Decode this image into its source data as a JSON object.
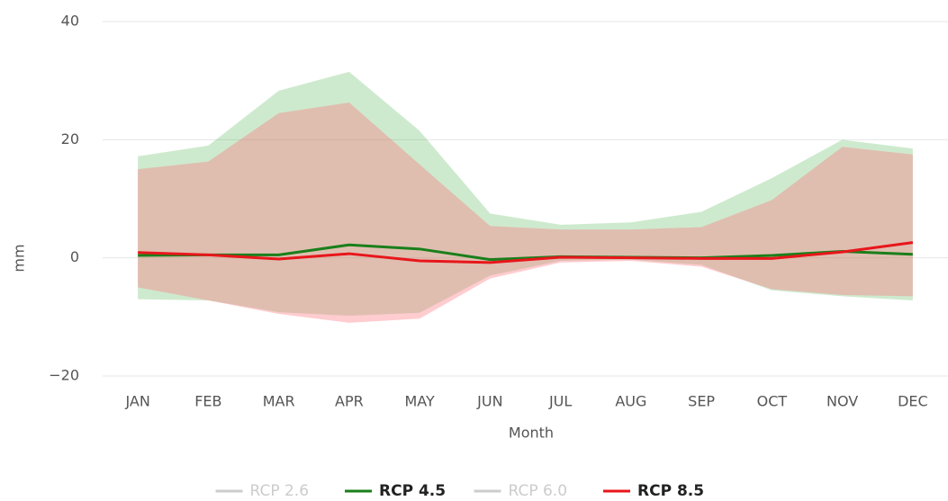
{
  "chart_data": {
    "type": "line",
    "x_label": "Month",
    "y_label": "mm",
    "categories": [
      "JAN",
      "FEB",
      "MAR",
      "APR",
      "MAY",
      "JUN",
      "JUL",
      "AUG",
      "SEP",
      "OCT",
      "NOV",
      "DEC"
    ],
    "ylim": [
      -20,
      40
    ],
    "yticks": [
      {
        "value": -20,
        "label": "−20"
      },
      0,
      20,
      40
    ],
    "grid": true,
    "series": [
      {
        "name": "RCP 2.6",
        "color": "#cccccc",
        "hidden": true
      },
      {
        "name": "RCP 4.5",
        "color": "#1a7f1a",
        "band_color": "rgba(60,170,60,0.25)",
        "values": [
          0.4,
          0.5,
          0.5,
          2.2,
          1.5,
          -0.3,
          0.2,
          0.1,
          0,
          0.4,
          1.1,
          0.6
        ],
        "high": [
          17.2,
          19,
          28.3,
          31.5,
          21.5,
          7.5,
          5.6,
          6,
          7.8,
          13.5,
          20,
          18.5
        ],
        "low": [
          -7,
          -7.2,
          -9.2,
          -9.8,
          -9.3,
          -3,
          -0.5,
          -0.3,
          -1.2,
          -5.5,
          -6.5,
          -7.2
        ]
      },
      {
        "name": "RCP 6.0",
        "color": "#cccccc",
        "hidden": true
      },
      {
        "name": "RCP 8.5",
        "color": "#e8161b",
        "band_color": "rgba(255,110,120,0.35)",
        "values": [
          0.9,
          0.5,
          -0.2,
          0.7,
          -0.5,
          -0.8,
          0.1,
          0,
          -0.1,
          -0.1,
          1.0,
          2.6
        ],
        "high": [
          15,
          16.3,
          24.5,
          26.3,
          15.8,
          5.4,
          4.8,
          4.8,
          5.2,
          9.8,
          18.8,
          17.5
        ],
        "low": [
          -5,
          -7.2,
          -9.5,
          -11,
          -10.3,
          -3.5,
          -0.8,
          -0.5,
          -1.5,
          -5.3,
          -6.3,
          -6.5
        ]
      }
    ]
  }
}
